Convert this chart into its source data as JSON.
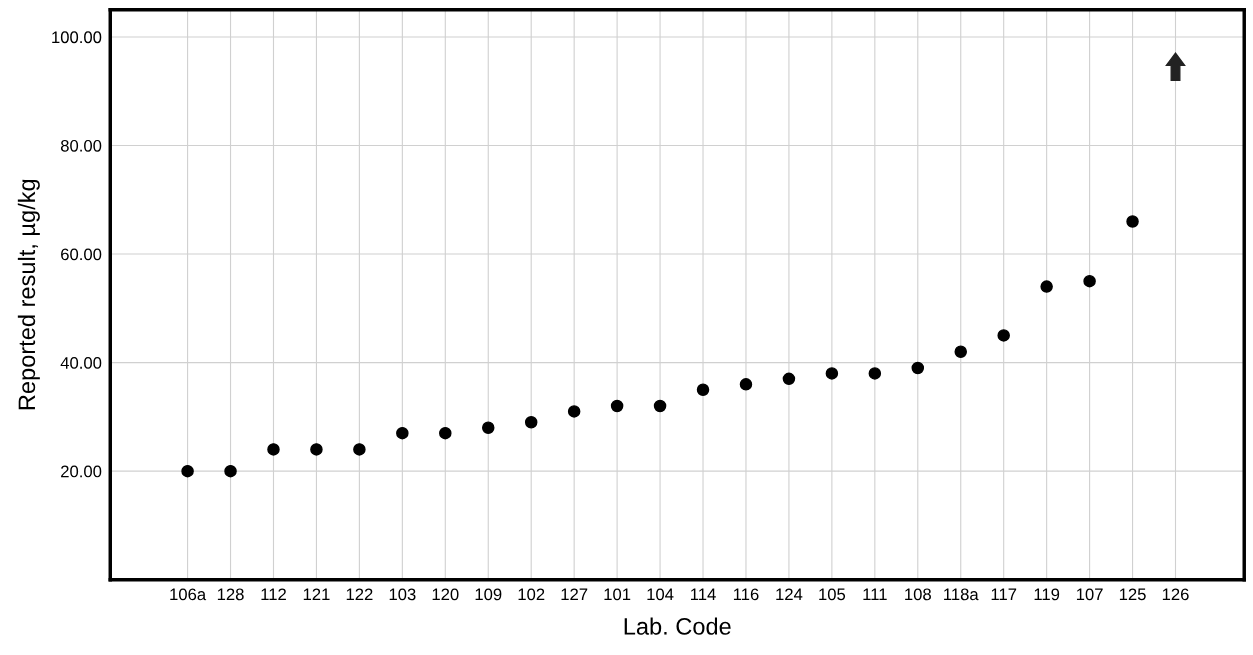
{
  "chart_data": {
    "type": "scatter",
    "xlabel": "Lab. Code",
    "ylabel": "Reported result, µg/kg",
    "categories": [
      "106a",
      "128",
      "112",
      "121",
      "122",
      "103",
      "120",
      "109",
      "102",
      "127",
      "101",
      "104",
      "114",
      "116",
      "124",
      "105",
      "111",
      "108",
      "118a",
      "117",
      "119",
      "107",
      "125",
      "126"
    ],
    "values": [
      20,
      20,
      24,
      24,
      24,
      27,
      27,
      28,
      29,
      31,
      32,
      32,
      35,
      36,
      37,
      38,
      38,
      39,
      42,
      45,
      54,
      55,
      66,
      null
    ],
    "color": "#000000",
    "marker": "circle",
    "ylim": [
      0,
      105
    ],
    "yticks": [
      {
        "value": 20,
        "label": "20.00"
      },
      {
        "value": 40,
        "label": "40.00"
      },
      {
        "value": 60,
        "label": "60.00"
      },
      {
        "value": 80,
        "label": "80.00"
      },
      {
        "value": 100,
        "label": "100.00"
      }
    ],
    "grid": true
  }
}
